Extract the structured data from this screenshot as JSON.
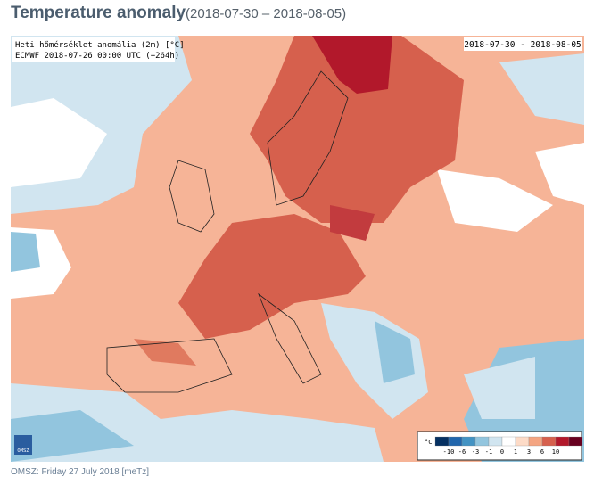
{
  "header": {
    "title": "Temperature anomaly",
    "period": "(2018-07-30 – 2018-08-05)"
  },
  "map": {
    "label_line1": "Heti hőmérséklet anomália (2m) [°C]",
    "label_line2": "ECMWF 2018-07-26 00:00 UTC (+264h)",
    "date_range": "2018-07-30 - 2018-08-05",
    "logo": "OMSZ"
  },
  "legend": {
    "unit": "°C",
    "ticks": [
      -10,
      -6,
      -3,
      -1,
      0,
      1,
      3,
      6,
      10
    ],
    "colors": [
      "#053061",
      "#2166ac",
      "#4393c3",
      "#92c5de",
      "#d1e5f0",
      "#ffffff",
      "#fddbc7",
      "#f4a582",
      "#d6604d",
      "#b2182b",
      "#67001f"
    ]
  },
  "footer": "OMSZ: Friday 27 July 2018  [meTz]"
}
